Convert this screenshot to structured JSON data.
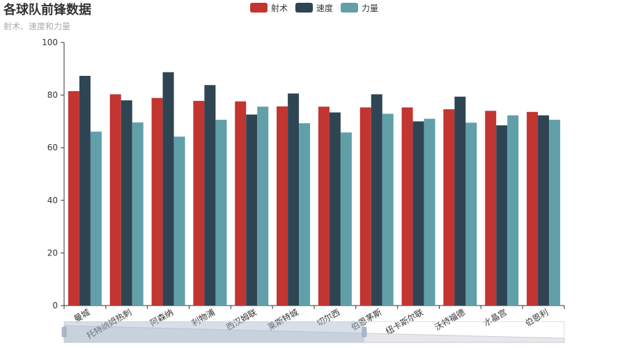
{
  "chart_data": {
    "type": "bar",
    "title": "各球队前锋数据",
    "subtitle": "射术、速度和力量",
    "xlabel": "",
    "ylabel": "",
    "ylim": [
      0,
      100
    ],
    "yticks": [
      0,
      20,
      40,
      60,
      80,
      100
    ],
    "grid": false,
    "legend": "top-center",
    "categories": [
      "曼城",
      "托特纳姆热刺",
      "阿森纳",
      "利物浦",
      "西汉姆联",
      "莱斯特城",
      "切尔西",
      "伯恩茅斯",
      "纽卡斯尔联",
      "沃特福德",
      "水晶宫",
      "伯恩利"
    ],
    "series": [
      {
        "name": "射术",
        "color": "#c23531",
        "values": [
          81.5,
          80.3,
          78.9,
          77.8,
          77.6,
          75.7,
          75.6,
          75.3,
          75.3,
          74.6,
          74.0,
          73.6
        ]
      },
      {
        "name": "速度",
        "color": "#2f4554",
        "values": [
          87.3,
          78.0,
          88.7,
          83.8,
          72.6,
          80.6,
          73.4,
          80.3,
          70.0,
          79.4,
          68.5,
          72.3
        ]
      },
      {
        "name": "力量",
        "color": "#61a0a8",
        "values": [
          66.1,
          69.6,
          64.2,
          70.6,
          75.6,
          69.3,
          65.8,
          72.9,
          71.0,
          69.5,
          72.3,
          70.6
        ]
      }
    ]
  }
}
